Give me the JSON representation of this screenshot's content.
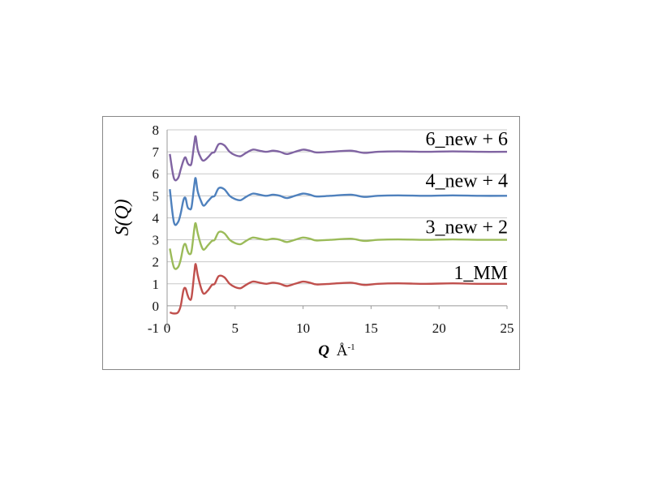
{
  "chart_data": {
    "type": "line",
    "title": "",
    "xlabel_symbol": "Q",
    "xlabel_unit": "Å",
    "xlabel_exp": "-1",
    "ylabel": "S(Q)",
    "xlim": [
      0,
      25
    ],
    "ylim": [
      -1,
      8
    ],
    "xticks": [
      0,
      5,
      10,
      15,
      20,
      25
    ],
    "yticks": [
      -1,
      0,
      1,
      2,
      3,
      4,
      5,
      6,
      7,
      8
    ],
    "grid": "horizontal",
    "legend": "inline-labels-right",
    "x": [
      0.2,
      0.5,
      0.8,
      1.0,
      1.2,
      1.35,
      1.5,
      1.65,
      1.8,
      2.0,
      2.1,
      2.25,
      2.5,
      2.7,
      3.0,
      3.3,
      3.5,
      3.8,
      4.2,
      4.6,
      5.0,
      5.4,
      5.8,
      6.3,
      6.8,
      7.3,
      7.8,
      8.3,
      8.8,
      9.4,
      10.0,
      10.5,
      11.0,
      12.0,
      13.5,
      14.5,
      15.5,
      17,
      19,
      21,
      23,
      25
    ],
    "series": [
      {
        "name": "1_MM",
        "color": "#c0504d",
        "label_y": 1.5,
        "values": [
          -0.3,
          -0.35,
          -0.3,
          0,
          0.7,
          0.8,
          0.5,
          0.3,
          0.4,
          1.5,
          1.9,
          1.4,
          0.8,
          0.55,
          0.7,
          0.95,
          1.0,
          1.35,
          1.3,
          1.0,
          0.85,
          0.8,
          0.95,
          1.1,
          1.05,
          1.0,
          1.05,
          1.0,
          0.9,
          1.0,
          1.1,
          1.05,
          0.97,
          1.0,
          1.05,
          0.95,
          1.0,
          1.02,
          1.0,
          1.02,
          1.0,
          1.0
        ]
      },
      {
        "name": "3_new + 2",
        "color": "#9bbb59",
        "label_y": 3.6,
        "values": [
          2.6,
          1.75,
          1.75,
          2.1,
          2.7,
          2.8,
          2.5,
          2.35,
          2.5,
          3.5,
          3.75,
          3.3,
          2.75,
          2.55,
          2.75,
          2.95,
          3.0,
          3.35,
          3.3,
          3.0,
          2.85,
          2.8,
          2.95,
          3.1,
          3.05,
          3.0,
          3.05,
          3.0,
          2.9,
          3.0,
          3.1,
          3.05,
          2.97,
          3.0,
          3.05,
          2.95,
          3.0,
          3.02,
          3.0,
          3.02,
          3.0,
          3.0
        ]
      },
      {
        "name": "4_new + 4",
        "color": "#4f81bd",
        "label_y": 5.7,
        "values": [
          5.3,
          3.8,
          3.8,
          4.2,
          4.8,
          4.9,
          4.5,
          4.4,
          4.5,
          5.5,
          5.8,
          5.2,
          4.75,
          4.55,
          4.75,
          4.95,
          5.0,
          5.35,
          5.3,
          5.0,
          4.85,
          4.8,
          4.95,
          5.1,
          5.05,
          5.0,
          5.05,
          5.0,
          4.9,
          5.0,
          5.1,
          5.05,
          4.97,
          5.0,
          5.05,
          4.95,
          5.0,
          5.02,
          5.0,
          5.02,
          5.0,
          5.0
        ]
      },
      {
        "name": "6_new + 6",
        "color": "#8064a2",
        "label_y": 7.6,
        "values": [
          6.9,
          5.8,
          5.8,
          6.2,
          6.6,
          6.75,
          6.5,
          6.4,
          6.5,
          7.4,
          7.7,
          7.1,
          6.7,
          6.6,
          6.75,
          6.95,
          7.0,
          7.35,
          7.3,
          7.0,
          6.85,
          6.8,
          6.95,
          7.1,
          7.05,
          7.0,
          7.05,
          7.0,
          6.9,
          7.0,
          7.1,
          7.05,
          6.97,
          7.0,
          7.05,
          6.95,
          7.0,
          7.02,
          7.0,
          7.02,
          7.0,
          7.0
        ]
      }
    ]
  }
}
